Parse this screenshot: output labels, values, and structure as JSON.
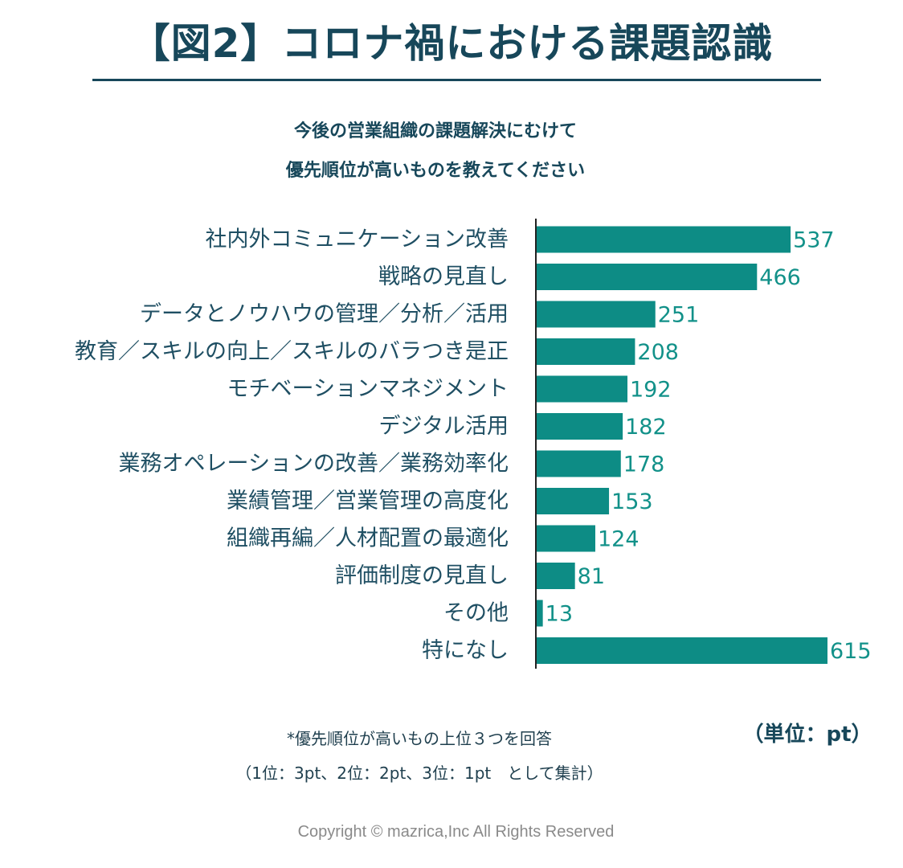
{
  "header": {
    "title": "【図2】コロナ禍における課題認識"
  },
  "question": {
    "line1": "今後の営業組織の課題解決にむけて",
    "line2": "優先順位が高いものを教えてください"
  },
  "chart_data": {
    "type": "bar",
    "orientation": "horizontal",
    "title": "今後の営業組織の課題解決にむけて 優先順位が高いものを教えてください",
    "categories": [
      "社内外コミュニケーション改善",
      "戦略の見直し",
      "データとノウハウの管理／分析／活用",
      "教育／スキルの向上／スキルのバラつき是正",
      "モチベーションマネジメント",
      "デジタル活用",
      "業務オペレーションの改善／業務効率化",
      "業績管理／営業管理の高度化",
      "組織再編／人材配置の最適化",
      "評価制度の見直し",
      "その他",
      "特になし"
    ],
    "values": [
      537,
      466,
      251,
      208,
      192,
      182,
      178,
      153,
      124,
      81,
      13,
      615
    ],
    "xlabel": "",
    "ylabel": "",
    "xlim": [
      0,
      615
    ],
    "unit": "pt",
    "grid": false,
    "bar_color": "#0d8c85",
    "value_label_color": "#129189"
  },
  "notes": {
    "line1": "*優先順位が高いもの上位３つを回答",
    "line2": "（1位：3pt、2位：2pt、3位：1pt　として集計）",
    "unit_label": "（単位：pt）"
  },
  "footer": {
    "copyright": "Copyright © mazrica,Inc All Rights Reserved"
  }
}
